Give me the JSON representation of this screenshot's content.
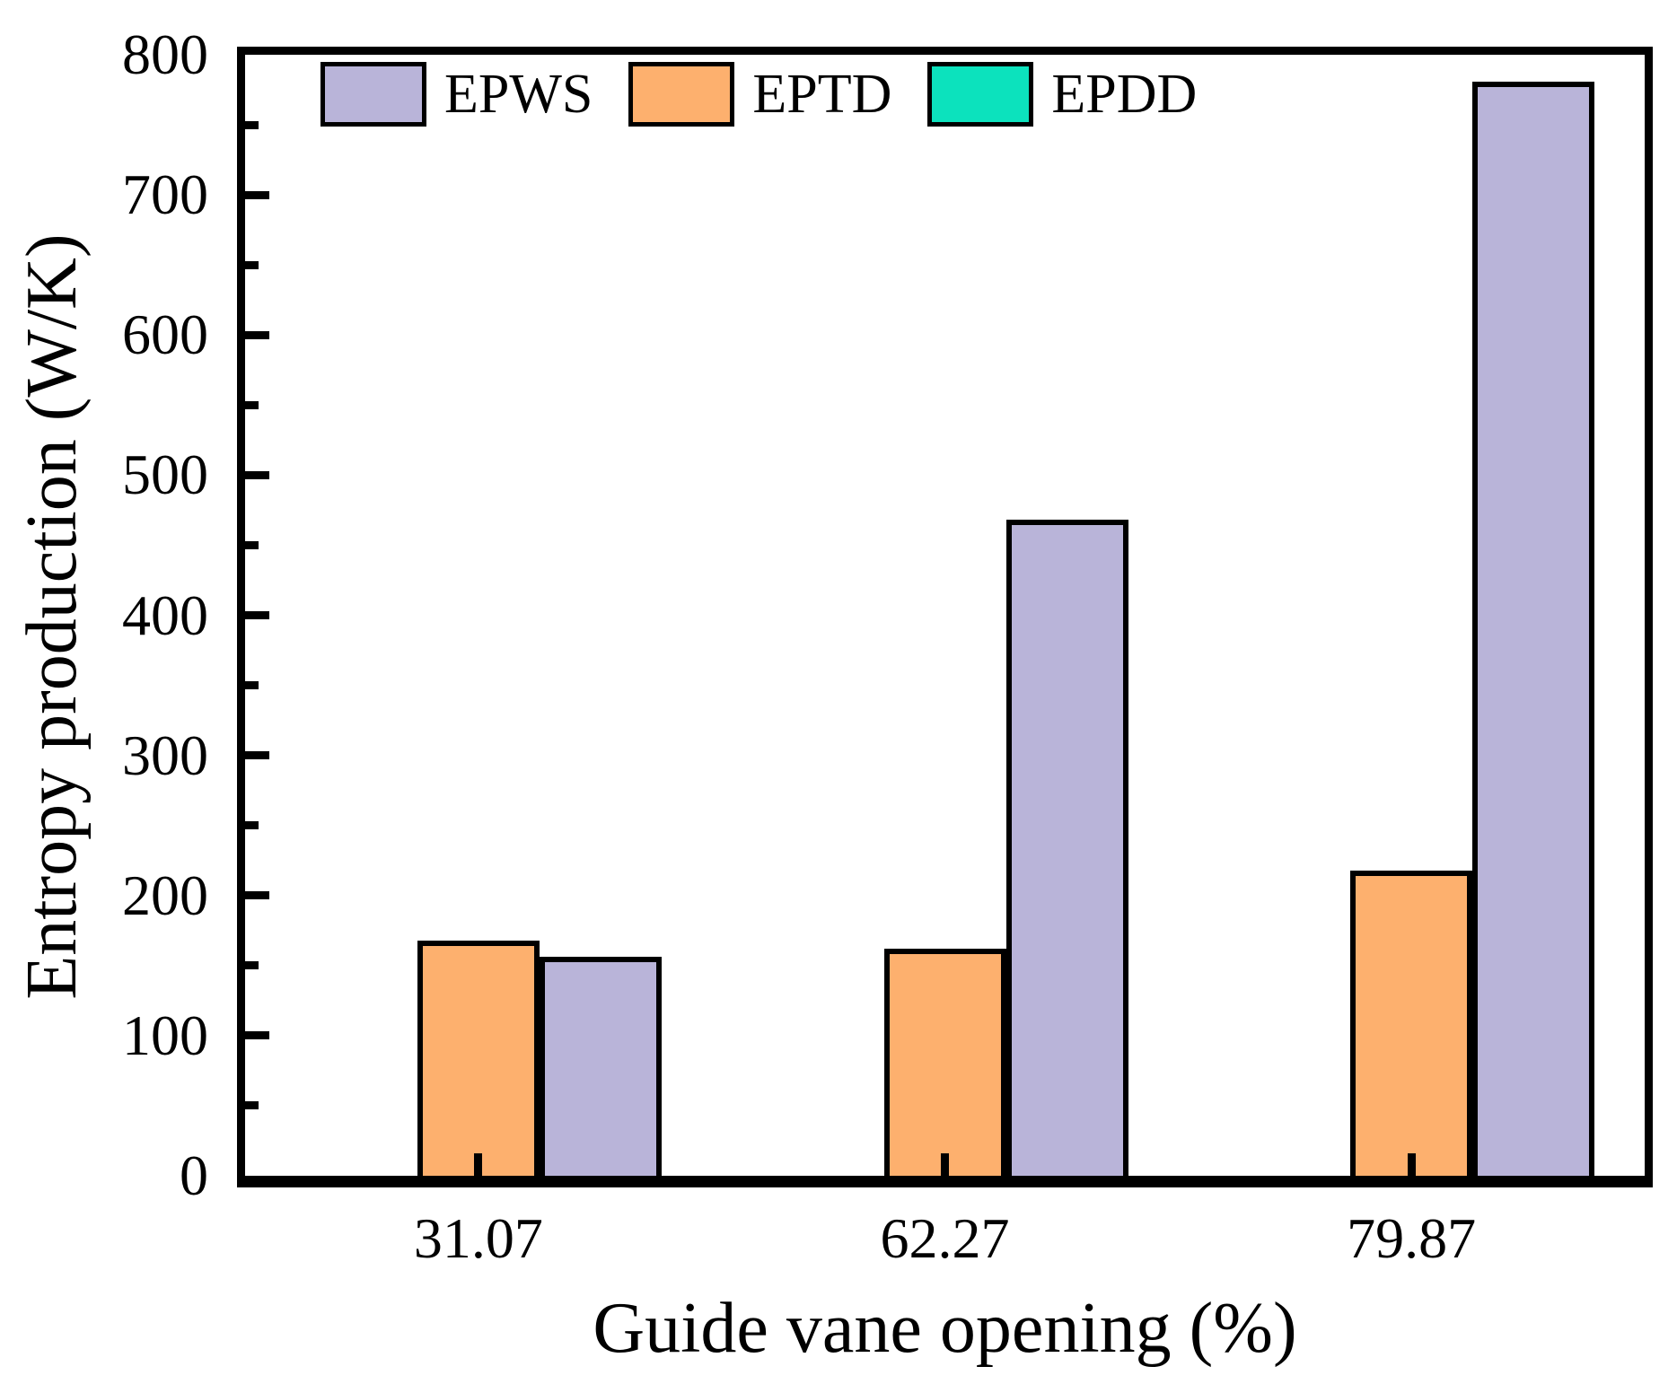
{
  "chart_data": {
    "type": "bar",
    "title": "",
    "xlabel": "Guide vane opening (%)",
    "ylabel": "Entropy production (W/K)",
    "categories": [
      "31.07",
      "62.27",
      "79.87"
    ],
    "series": [
      {
        "name": "EPWS",
        "color": "#b9b4d9",
        "slot": 1,
        "values": [
          156,
          468,
          781
        ]
      },
      {
        "name": "EPTD",
        "color": "#fdb06e",
        "slot": 0,
        "values": [
          168,
          162,
          218
        ]
      },
      {
        "name": "EPDD",
        "color": "#0ce2bd",
        "slot": -1,
        "values": [
          0,
          0,
          0
        ]
      }
    ],
    "ylim": [
      0,
      800
    ],
    "y_major_step": 100,
    "y_minor_step": 50,
    "y_tick_labels": [
      "0",
      "100",
      "200",
      "300",
      "400",
      "500",
      "600",
      "700",
      "800"
    ],
    "legend_position": "top-left-inside",
    "legend_entries": [
      "EPWS",
      "EPTD",
      "EPDD"
    ],
    "grid": false,
    "axis_color": "#000000",
    "bar_edge_color": "#000000",
    "background": "#ffffff"
  }
}
